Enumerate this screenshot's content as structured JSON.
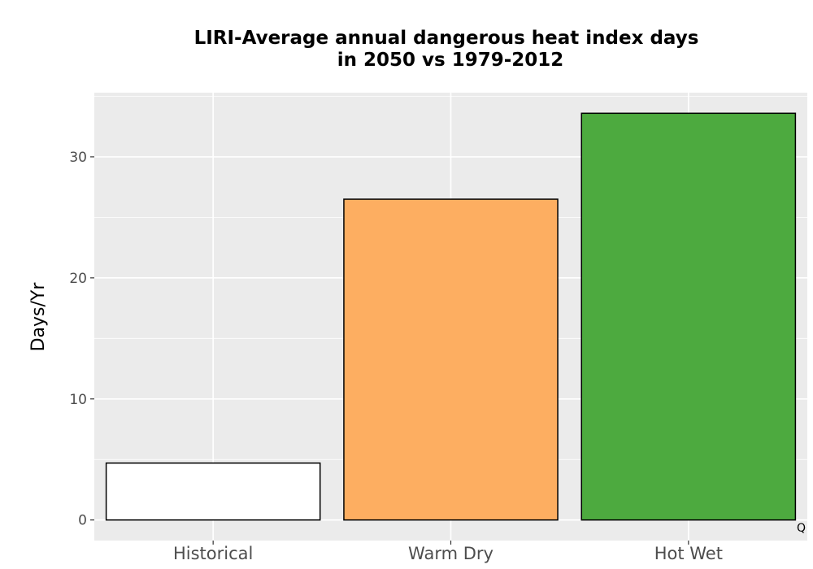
{
  "chart_data": {
    "type": "bar",
    "title_lines": [
      "LIRI-Average annual dangerous heat index days",
      "in 2050 vs 1979-2012"
    ],
    "xlabel": "",
    "ylabel": "Days/Yr",
    "categories": [
      "Historical",
      "Warm Dry",
      "Hot Wet"
    ],
    "values": [
      4.7,
      26.5,
      33.6
    ],
    "colors": [
      "#ffffff",
      "#fdae61",
      "#4daa3f"
    ],
    "ylim": [
      -1.7,
      35.3
    ],
    "y_ticks": [
      0,
      10,
      20,
      30
    ],
    "y_tick_labels": [
      "0",
      "10",
      "20",
      "30"
    ],
    "grid": true,
    "corner_text": "Q",
    "panel_background": "#ebebeb"
  }
}
